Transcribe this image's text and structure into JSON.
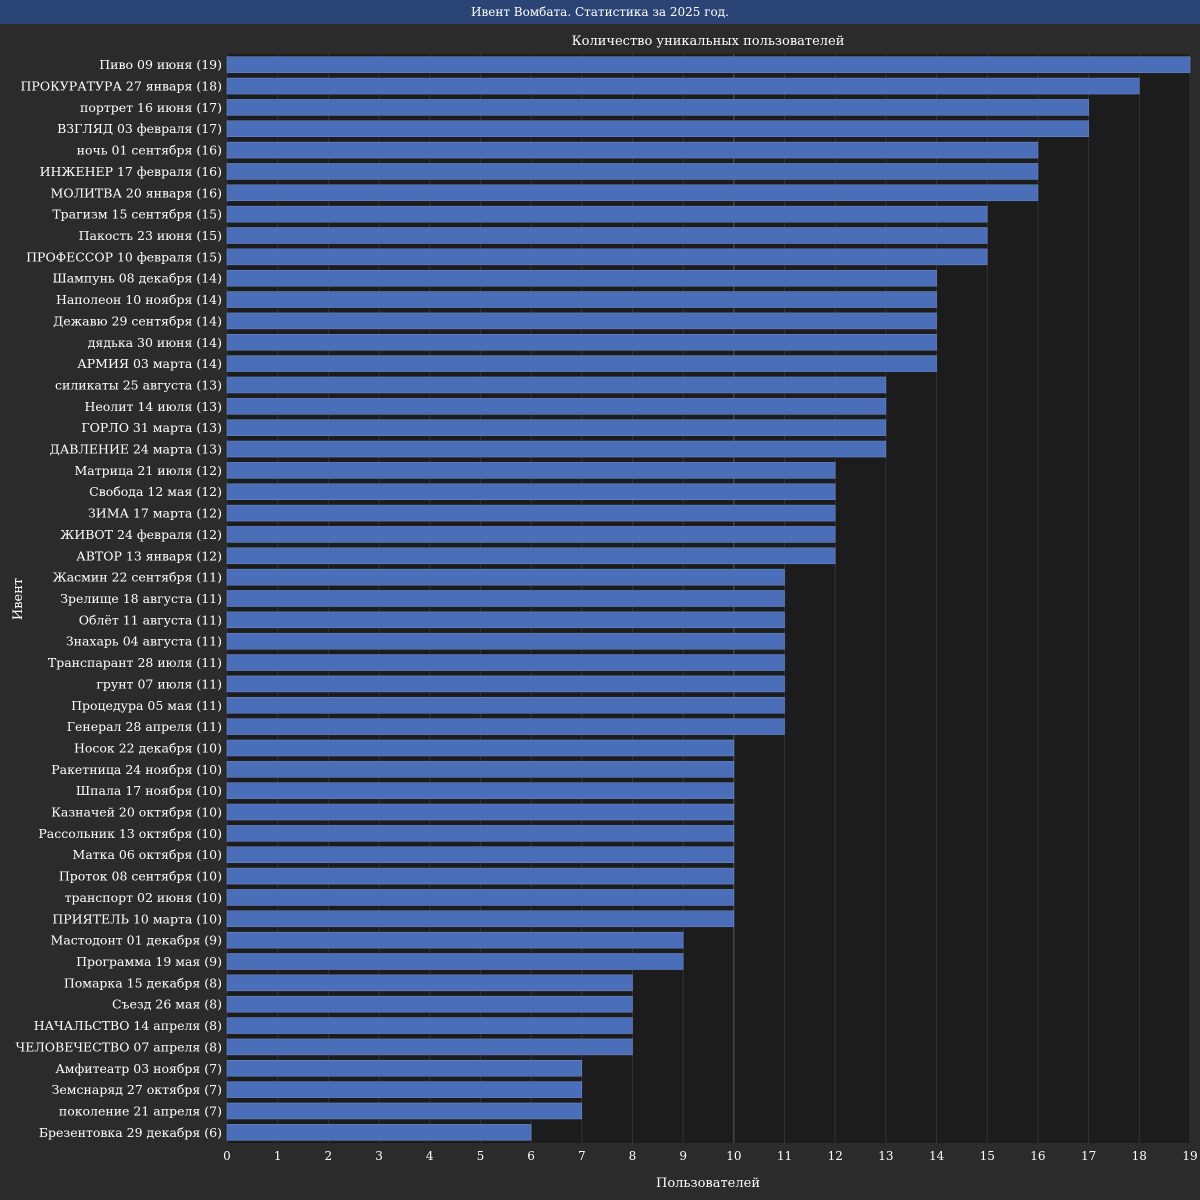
{
  "window": {
    "title": "Ивент Вомбата. Статистика за 2025 год."
  },
  "chart_data": {
    "type": "bar",
    "orientation": "horizontal",
    "title": "Количество уникальных пользователей",
    "xlabel": "Пользователей",
    "ylabel": "Ивент",
    "xlim": [
      0,
      19
    ],
    "xticks": [
      0,
      1,
      2,
      3,
      4,
      5,
      6,
      7,
      8,
      9,
      10,
      11,
      12,
      13,
      14,
      15,
      16,
      17,
      18,
      19
    ],
    "grid": true,
    "bar_color": "#4a6eb8",
    "background_color": "#1c1c1c",
    "categories": [
      "Пиво 09 июня (19)",
      "ПРОКУРАТУРА 27 января (18)",
      "портрет 16 июня (17)",
      "ВЗГЛЯД 03 февраля (17)",
      "ночь 01 сентября (16)",
      "ИНЖЕНЕР 17 февраля (16)",
      "МОЛИТВА 20 января (16)",
      "Трагизм 15 сентября (15)",
      "Пакость 23 июня (15)",
      "ПРОФЕССОР 10 февраля (15)",
      "Шампунь 08 декабря (14)",
      "Наполеон 10 ноября (14)",
      "Дежавю 29 сентября (14)",
      "дядька 30 июня (14)",
      "АРМИЯ 03 марта (14)",
      "силикаты 25 августа (13)",
      "Неолит 14 июля (13)",
      "ГОРЛО 31 марта (13)",
      "ДАВЛЕНИЕ 24 марта (13)",
      "Матрица 21 июля (12)",
      "Свобода 12 мая (12)",
      "ЗИМА 17 марта (12)",
      "ЖИВОТ 24 февраля (12)",
      "АВТОР 13 января (12)",
      "Жасмин 22 сентября (11)",
      "Зрелище 18 августа (11)",
      "Облёт 11 августа (11)",
      "Знахарь 04 августа (11)",
      "Транспарант 28 июля (11)",
      "грунт 07 июля (11)",
      "Процедура 05 мая (11)",
      "Генерал 28 апреля (11)",
      "Носок 22 декабря (10)",
      "Ракетница 24 ноября (10)",
      "Шпала 17 ноября (10)",
      "Казначей 20 октября (10)",
      "Рассольник 13 октября (10)",
      "Матка 06 октября (10)",
      "Проток 08 сентября (10)",
      "транспорт 02 июня (10)",
      "ПРИЯТЕЛЬ 10 марта (10)",
      "Мастодонт 01 декабря (9)",
      "Программа 19 мая (9)",
      "Помарка 15 декабря (8)",
      "Съезд 26 мая (8)",
      "НАЧАЛЬСТВО 14 апреля (8)",
      "ЧЕЛОВЕЧЕСТВО 07 апреля (8)",
      "Амфитеатр 03 ноября (7)",
      "Земснаряд 27 октября (7)",
      "поколение 21 апреля (7)",
      "Брезентовка 29 декабря (6)"
    ],
    "values": [
      19,
      18,
      17,
      17,
      16,
      16,
      16,
      15,
      15,
      15,
      14,
      14,
      14,
      14,
      14,
      13,
      13,
      13,
      13,
      12,
      12,
      12,
      12,
      12,
      11,
      11,
      11,
      11,
      11,
      11,
      11,
      11,
      10,
      10,
      10,
      10,
      10,
      10,
      10,
      10,
      10,
      9,
      9,
      8,
      8,
      8,
      8,
      7,
      7,
      7,
      6
    ]
  }
}
